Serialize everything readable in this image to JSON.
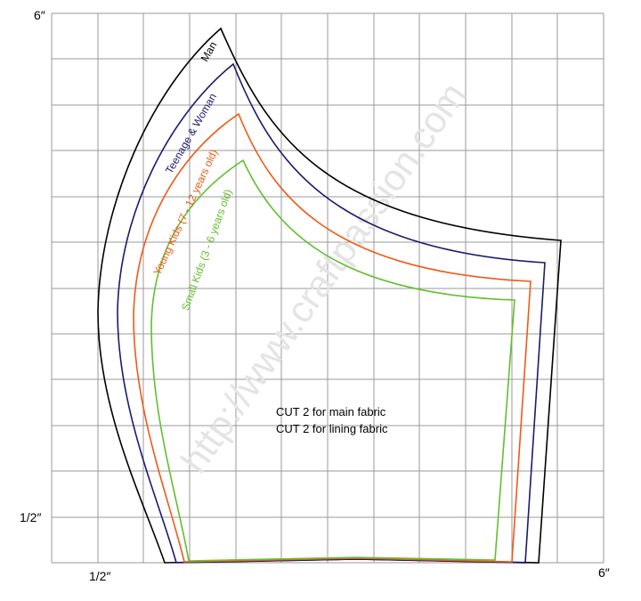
{
  "axis_labels": {
    "top_left": "6″",
    "left_bottom": "1/2″",
    "bottom_left": "1/2″",
    "bottom_right": "6″"
  },
  "sizes": [
    {
      "label": "Man"
    },
    {
      "label": "Teenage & Woman"
    },
    {
      "label": "Young Kids (7 - 12 years old)"
    },
    {
      "label": "Small Kids (3 - 6 years old)"
    }
  ],
  "instructions": [
    "CUT 2 for main fabric",
    "CUT 2 for lining fabric"
  ],
  "watermark": "http://www.craftpassion.com"
}
